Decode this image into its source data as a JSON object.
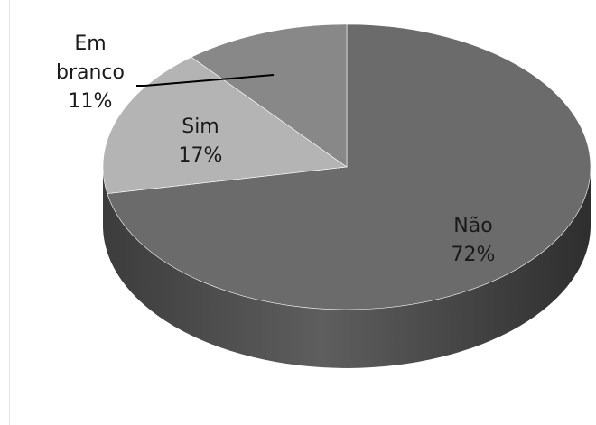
{
  "chart_data": {
    "type": "pie",
    "slices": [
      {
        "label": "Não",
        "value": 72,
        "display": "72%",
        "color": "#6b6b6b"
      },
      {
        "label": "Sim",
        "value": 17,
        "display": "17%",
        "color": "#b4b4b4"
      },
      {
        "label": "Em branco",
        "value": 11,
        "display": "11%",
        "color": "#888888"
      }
    ],
    "label_lines": {
      "Não": [
        "Não",
        "72%"
      ],
      "Sim": [
        "Sim",
        "17%"
      ],
      "Em branco": [
        "Em",
        "branco",
        "11%"
      ]
    },
    "style": "3d",
    "legend": "none"
  }
}
